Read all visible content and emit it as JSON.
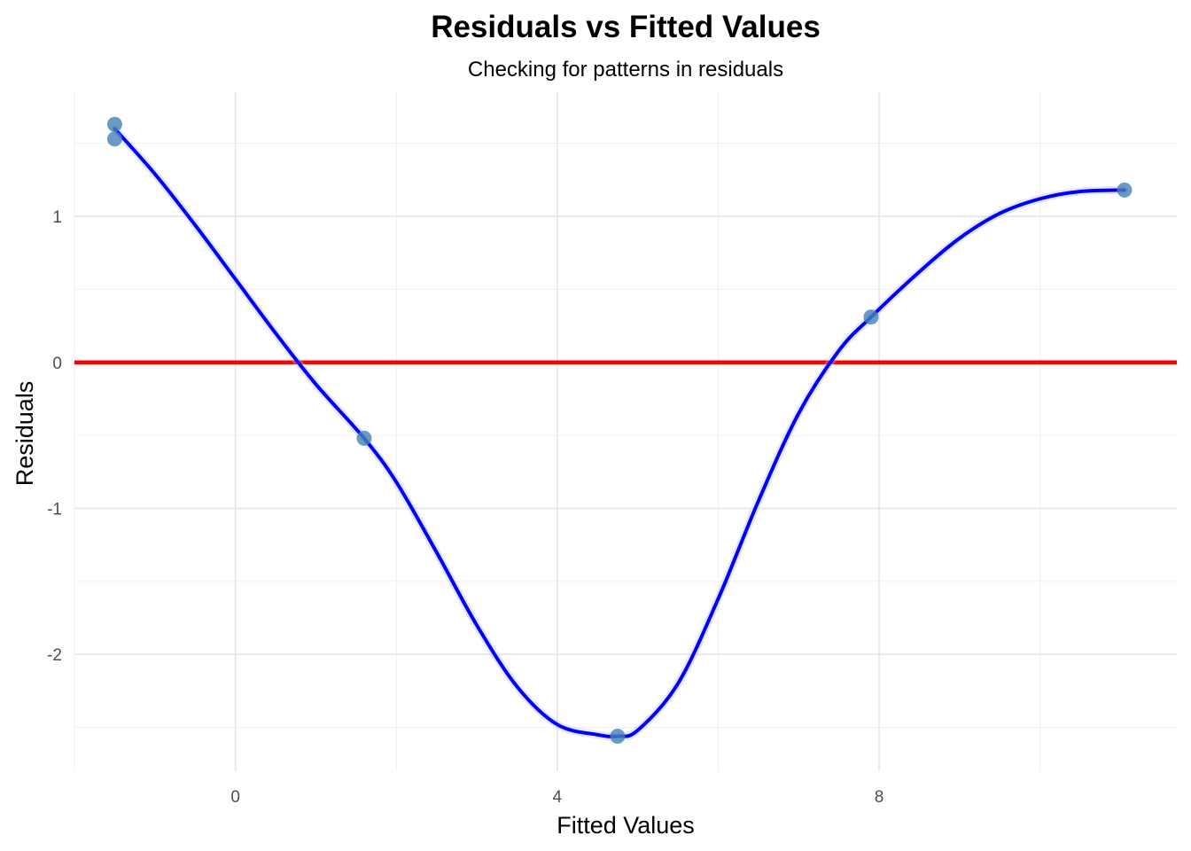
{
  "chart_data": {
    "type": "scatter",
    "title": "Residuals vs Fitted Values",
    "subtitle": "Checking for patterns in residuals",
    "xlabel": "Fitted Values",
    "ylabel": "Residuals",
    "xlim": [
      -2,
      11.7
    ],
    "ylim": [
      -2.8,
      1.85
    ],
    "x_ticks": [
      0,
      4,
      8
    ],
    "x_tick_labels": [
      "0",
      "4",
      "8"
    ],
    "x_minor_ticks": [
      -2,
      2,
      6,
      10
    ],
    "y_ticks": [
      -2,
      -1,
      0,
      1
    ],
    "y_tick_labels": [
      "-2",
      "-1",
      "0",
      "1"
    ],
    "y_minor_ticks": [
      -2.5,
      -1.5,
      -0.5,
      0.5,
      1.5
    ],
    "grid": true,
    "series": [
      {
        "kind": "points",
        "color": "#4682B4",
        "x": [
          -1.5,
          -1.5,
          1.6,
          4.75,
          7.9,
          11.05
        ],
        "y": [
          1.63,
          1.53,
          -0.52,
          -2.56,
          0.31,
          1.18
        ]
      },
      {
        "kind": "smooth",
        "color": "#0000FF",
        "x": [
          -1.5,
          -1.0,
          -0.5,
          0.0,
          0.5,
          1.0,
          1.6,
          2.0,
          2.5,
          3.0,
          3.5,
          4.0,
          4.5,
          4.75,
          5.0,
          5.5,
          6.0,
          6.5,
          7.0,
          7.5,
          7.9,
          8.5,
          9.0,
          9.5,
          10.0,
          10.5,
          11.05
        ],
        "y": [
          1.6,
          1.29,
          0.94,
          0.57,
          0.2,
          -0.15,
          -0.52,
          -0.82,
          -1.3,
          -1.8,
          -2.22,
          -2.48,
          -2.55,
          -2.56,
          -2.52,
          -2.2,
          -1.62,
          -0.95,
          -0.35,
          0.08,
          0.31,
          0.62,
          0.85,
          1.02,
          1.12,
          1.17,
          1.18
        ]
      }
    ],
    "reference_line": {
      "y": 0,
      "color": "#FF0000"
    }
  }
}
